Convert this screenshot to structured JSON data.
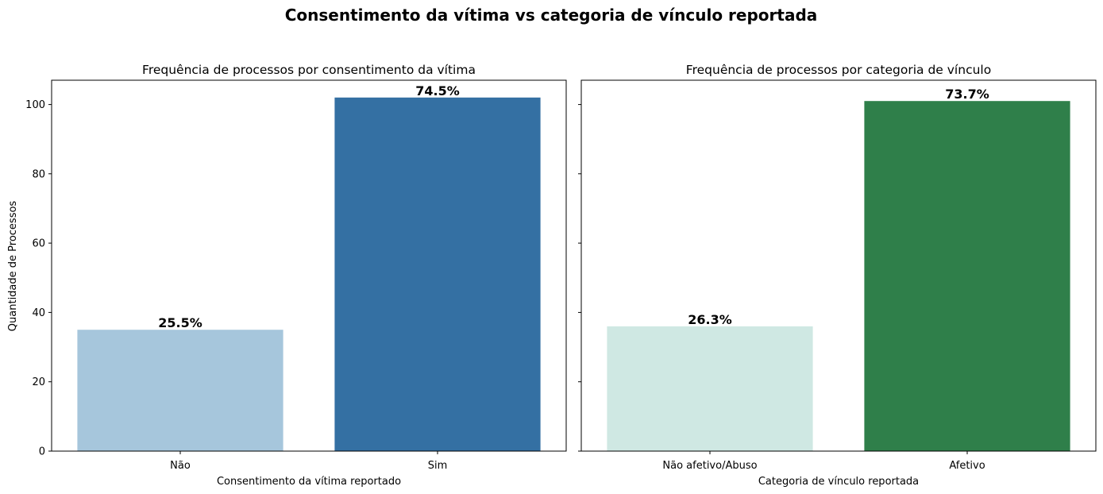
{
  "figure_title": "Consentimento da vítima vs categoria de vínculo reportada",
  "chart_data": [
    {
      "type": "bar",
      "title": "Frequência de processos por consentimento da vítima",
      "xlabel": "Consentimento da vítima reportado",
      "ylabel": "Quantidade de Processos",
      "categories": [
        "Não",
        "Sim"
      ],
      "values": [
        35,
        102
      ],
      "bar_labels": [
        "25.5%",
        "74.5%"
      ],
      "colors": [
        "#a6c6dc",
        "#3470a3"
      ],
      "ylim": [
        0,
        107
      ],
      "yticks": [
        0,
        20,
        40,
        60,
        80,
        100
      ],
      "grid": false,
      "show_ytick_labels": true
    },
    {
      "type": "bar",
      "title": "Frequência de processos por categoria de vínculo",
      "xlabel": "Categoria de vínculo reportada",
      "ylabel": "",
      "categories": [
        "Não afetivo/Abuso",
        "Afetivo"
      ],
      "values": [
        36,
        101
      ],
      "bar_labels": [
        "26.3%",
        "73.7%"
      ],
      "colors": [
        "#cfe8e3",
        "#2f7f4a"
      ],
      "ylim": [
        0,
        107
      ],
      "yticks": [
        0,
        20,
        40,
        60,
        80,
        100
      ],
      "grid": false,
      "show_ytick_labels": false
    }
  ]
}
